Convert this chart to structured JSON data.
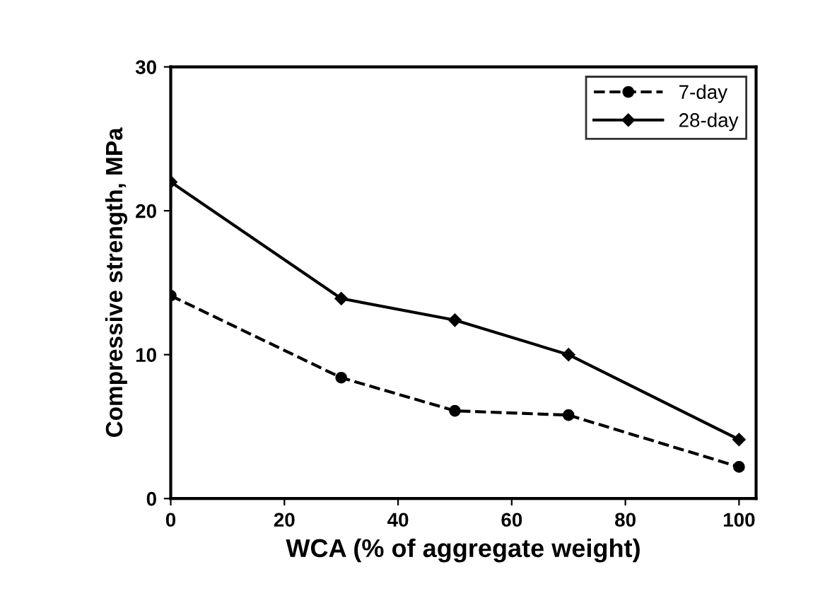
{
  "chart_data": {
    "type": "line",
    "xlabel": "WCA (% of aggregate weight)",
    "ylabel": "Compressive strength, MPa",
    "x": [
      0,
      30,
      50,
      70,
      100
    ],
    "series": [
      {
        "name": "7-day",
        "color": "#000000",
        "values": [
          14.1,
          8.4,
          6.1,
          5.8,
          2.2
        ],
        "line_style": "dashed",
        "marker": "circle"
      },
      {
        "name": "28-day",
        "color": "#000000",
        "values": [
          22.0,
          13.9,
          12.4,
          10.0,
          4.1
        ],
        "line_style": "solid",
        "marker": "diamond"
      }
    ],
    "xlim": [
      0,
      103
    ],
    "xticks": [
      0,
      20,
      40,
      60,
      80,
      100
    ],
    "ylim": [
      0,
      30
    ],
    "yticks": [
      0,
      10,
      20,
      30
    ],
    "grid": false,
    "legend": "top right"
  }
}
